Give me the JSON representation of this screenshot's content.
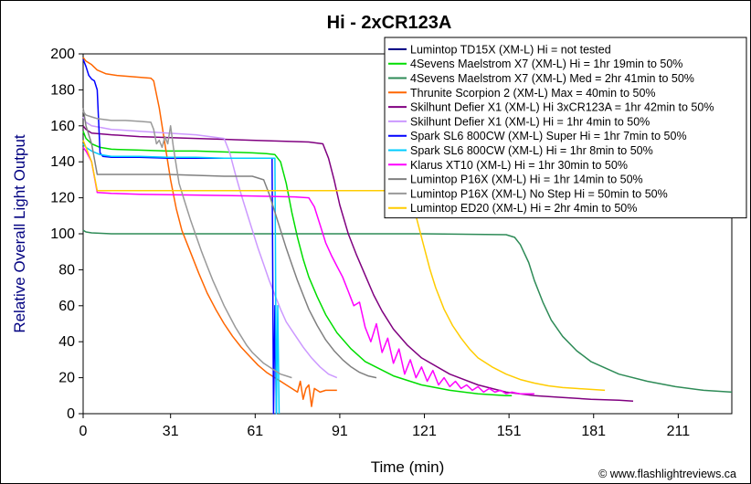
{
  "chart_data": {
    "type": "line",
    "title": "Hi - 2xCR123A",
    "xlabel": "Time (min)",
    "ylabel": "Relative Overall Light Output",
    "credit": "© www.flashlightreviews.ca",
    "xlim": [
      0,
      230
    ],
    "ylim": [
      0,
      200
    ],
    "xticks": [
      0,
      31,
      61,
      91,
      121,
      151,
      181,
      211
    ],
    "yticks": [
      0,
      20,
      40,
      60,
      80,
      100,
      120,
      140,
      160,
      180,
      200
    ],
    "grid": false,
    "legend_position": "top-right",
    "series": [
      {
        "name": "Lumintop TD15X (XM-L) Hi = not tested",
        "color": "#000080",
        "x": [],
        "y": []
      },
      {
        "name": "4Sevens Maelstrom X7 (XM-L) Hi = 1hr 19min to 50%",
        "color": "#00dd00",
        "x": [
          0,
          1,
          3,
          6,
          10,
          20,
          30,
          40,
          50,
          60,
          65,
          68,
          70,
          72,
          74,
          76,
          78,
          80,
          83,
          86,
          90,
          95,
          100,
          110,
          120,
          130,
          140,
          150,
          152
        ],
        "y": [
          157,
          153,
          150,
          148,
          147,
          146.5,
          146,
          146,
          145.5,
          145,
          144.5,
          144,
          140,
          128,
          112,
          98,
          86,
          76,
          65,
          55,
          45,
          36,
          29,
          21,
          16,
          13,
          11,
          10,
          10
        ]
      },
      {
        "name": "4Sevens Maelstrom X7 (XM-L) Med = 2hr 41min to 50%",
        "color": "#2e8b57",
        "x": [
          0,
          1,
          3,
          10,
          40,
          80,
          120,
          150,
          153,
          155,
          158,
          160,
          163,
          166,
          170,
          175,
          180,
          190,
          200,
          210,
          220,
          230
        ],
        "y": [
          102,
          101,
          100.5,
          100,
          100,
          100,
          100,
          99.5,
          98,
          94,
          84,
          74,
          62,
          52,
          43,
          35,
          29,
          22,
          18,
          15,
          13,
          12
        ]
      },
      {
        "name": "Thrunite Scorpion 2 (XM-L) Max = 40min to 50%",
        "color": "#ff6600",
        "x": [
          0,
          1,
          3,
          5,
          8,
          12,
          16,
          20,
          24,
          25,
          27,
          29,
          31,
          33,
          35,
          38,
          41,
          44,
          47,
          50,
          53,
          56,
          59,
          62,
          65,
          68,
          70,
          72,
          74,
          76,
          77,
          78,
          79,
          80,
          81,
          82,
          84,
          86,
          90
        ],
        "y": [
          198,
          196,
          194,
          191,
          189,
          188,
          187.5,
          187,
          186.5,
          185,
          170,
          150,
          130,
          114,
          102,
          90,
          78,
          67,
          58,
          50,
          43,
          37,
          32,
          27,
          23,
          20,
          18,
          16,
          14,
          12,
          18,
          8,
          14,
          16,
          4,
          14,
          12,
          13,
          13
        ]
      },
      {
        "name": "Skilhunt Defier X1 (XM-L) Hi 3xCR123A = 1hr 42min to 50%",
        "color": "#800080",
        "x": [
          0,
          1,
          3,
          10,
          20,
          40,
          60,
          80,
          85,
          87,
          89,
          91,
          94,
          97,
          100,
          103,
          106,
          110,
          115,
          120,
          130,
          140,
          150,
          160,
          170,
          180,
          190,
          195
        ],
        "y": [
          160,
          158,
          156,
          155,
          154,
          153,
          152,
          151,
          150,
          142,
          130,
          116,
          100,
          88,
          77,
          66,
          57,
          47,
          38,
          31,
          22,
          16,
          12,
          10,
          9,
          8,
          7.5,
          7
        ]
      },
      {
        "name": "Skilhunt Defier X1 (XM-L) Hi = 1hr 4min to 50%",
        "color": "#cc99ff",
        "x": [
          0,
          1,
          3,
          10,
          20,
          30,
          40,
          50,
          52,
          54,
          56,
          58,
          60,
          62,
          64,
          66,
          68,
          70,
          72,
          75,
          78,
          81,
          84,
          87,
          90
        ],
        "y": [
          165,
          162,
          160,
          158,
          157,
          156,
          155,
          153,
          145,
          133,
          122,
          112,
          102,
          92,
          83,
          74,
          66,
          58,
          51,
          44,
          37,
          31,
          26,
          22,
          20
        ]
      },
      {
        "name": "Spark SL6 800CW (XM-L) Super Hi = 1hr 7min to 50%",
        "color": "#0000ff",
        "x": [
          0,
          1,
          2,
          3,
          4,
          5,
          6,
          7,
          10,
          20,
          30,
          40,
          50,
          60,
          66,
          67,
          67.5,
          68,
          68.5
        ],
        "y": [
          197,
          193,
          188,
          186,
          185,
          180,
          145,
          143,
          142.5,
          142.5,
          142,
          142,
          142,
          142,
          142,
          142,
          0,
          60,
          0
        ]
      },
      {
        "name": "Spark SL6 800CW (XM-L) Hi = 1hr 8min to 50%",
        "color": "#00ccff",
        "x": [
          0,
          1,
          3,
          6,
          10,
          20,
          30,
          40,
          50,
          60,
          67,
          68,
          68.5,
          69,
          69.5
        ],
        "y": [
          150,
          148,
          146,
          144,
          143,
          143,
          142.5,
          142.5,
          142,
          142,
          142,
          142,
          0,
          60,
          0
        ]
      },
      {
        "name": "Klarus XT10 (XM-L) Hi = 1hr 30min to 50%",
        "color": "#ff00ff",
        "x": [
          0,
          1,
          3,
          5,
          10,
          20,
          40,
          60,
          75,
          80,
          82,
          84,
          86,
          88,
          90,
          92,
          94,
          96,
          98,
          100,
          102,
          104,
          106,
          108,
          110,
          112,
          114,
          116,
          118,
          120,
          122,
          124,
          126,
          128,
          130,
          132,
          134,
          136,
          138,
          140,
          142,
          144,
          146,
          148,
          150,
          152,
          155,
          160
        ],
        "y": [
          148,
          146,
          140,
          123,
          122.5,
          122,
          121.5,
          121,
          120.5,
          120,
          115,
          105,
          95,
          88,
          82,
          76,
          68,
          60,
          62,
          48,
          40,
          50,
          34,
          42,
          28,
          36,
          22,
          30,
          20,
          26,
          18,
          24,
          16,
          20,
          15,
          18,
          14,
          16,
          13,
          15,
          12,
          14,
          12,
          13,
          11,
          12,
          11,
          11
        ]
      },
      {
        "name": "Lumintop P16X (XM-L) Hi = 1hr 14min to 50%",
        "color": "#808080",
        "x": [
          0,
          1,
          3,
          5,
          10,
          20,
          30,
          40,
          50,
          60,
          64,
          66,
          68,
          70,
          72,
          74,
          76,
          78,
          80,
          83,
          86,
          89,
          92,
          95,
          98,
          101,
          104
        ],
        "y": [
          170,
          160,
          150,
          133,
          133,
          133,
          133,
          132.5,
          132,
          132,
          130,
          122,
          112,
          102,
          92,
          83,
          74,
          66,
          58,
          49,
          41,
          35,
          30,
          26,
          23,
          21,
          20
        ]
      },
      {
        "name": "Lumintop P16X (XM-L) No Step Hi = 50min to 50%",
        "color": "#999999",
        "x": [
          0,
          1,
          3,
          5,
          10,
          15,
          20,
          24,
          25,
          26,
          27,
          28,
          29,
          30,
          31,
          32,
          33,
          34,
          36,
          38,
          40,
          42,
          44,
          46,
          48,
          50,
          52,
          54,
          56,
          58,
          60,
          62,
          64,
          66,
          68,
          70,
          72,
          74
        ],
        "y": [
          168,
          166,
          165,
          164,
          163,
          163,
          162.5,
          162,
          158,
          150,
          152,
          148,
          154,
          150,
          160,
          148,
          138,
          128,
          118,
          108,
          99,
          90,
          82,
          74,
          67,
          60,
          54,
          48,
          43,
          38,
          34,
          31,
          28,
          26,
          24,
          22,
          21,
          20
        ]
      },
      {
        "name": "Lumintop ED20 (XM-L) Hi = 2hr 4min to 50%",
        "color": "#ffcc00",
        "x": [
          0,
          1,
          3,
          5,
          10,
          20,
          40,
          60,
          80,
          100,
          110,
          115,
          117,
          119,
          121,
          123,
          125,
          128,
          131,
          134,
          137,
          140,
          145,
          150,
          155,
          160,
          165,
          170,
          175,
          180,
          185
        ],
        "y": [
          152,
          148,
          140,
          124,
          124,
          124,
          124,
          124,
          124,
          124,
          124,
          123,
          116,
          104,
          92,
          80,
          70,
          58,
          49,
          42,
          36,
          31,
          26,
          22,
          19,
          17,
          15.5,
          14.5,
          14,
          13.5,
          13
        ]
      }
    ]
  }
}
